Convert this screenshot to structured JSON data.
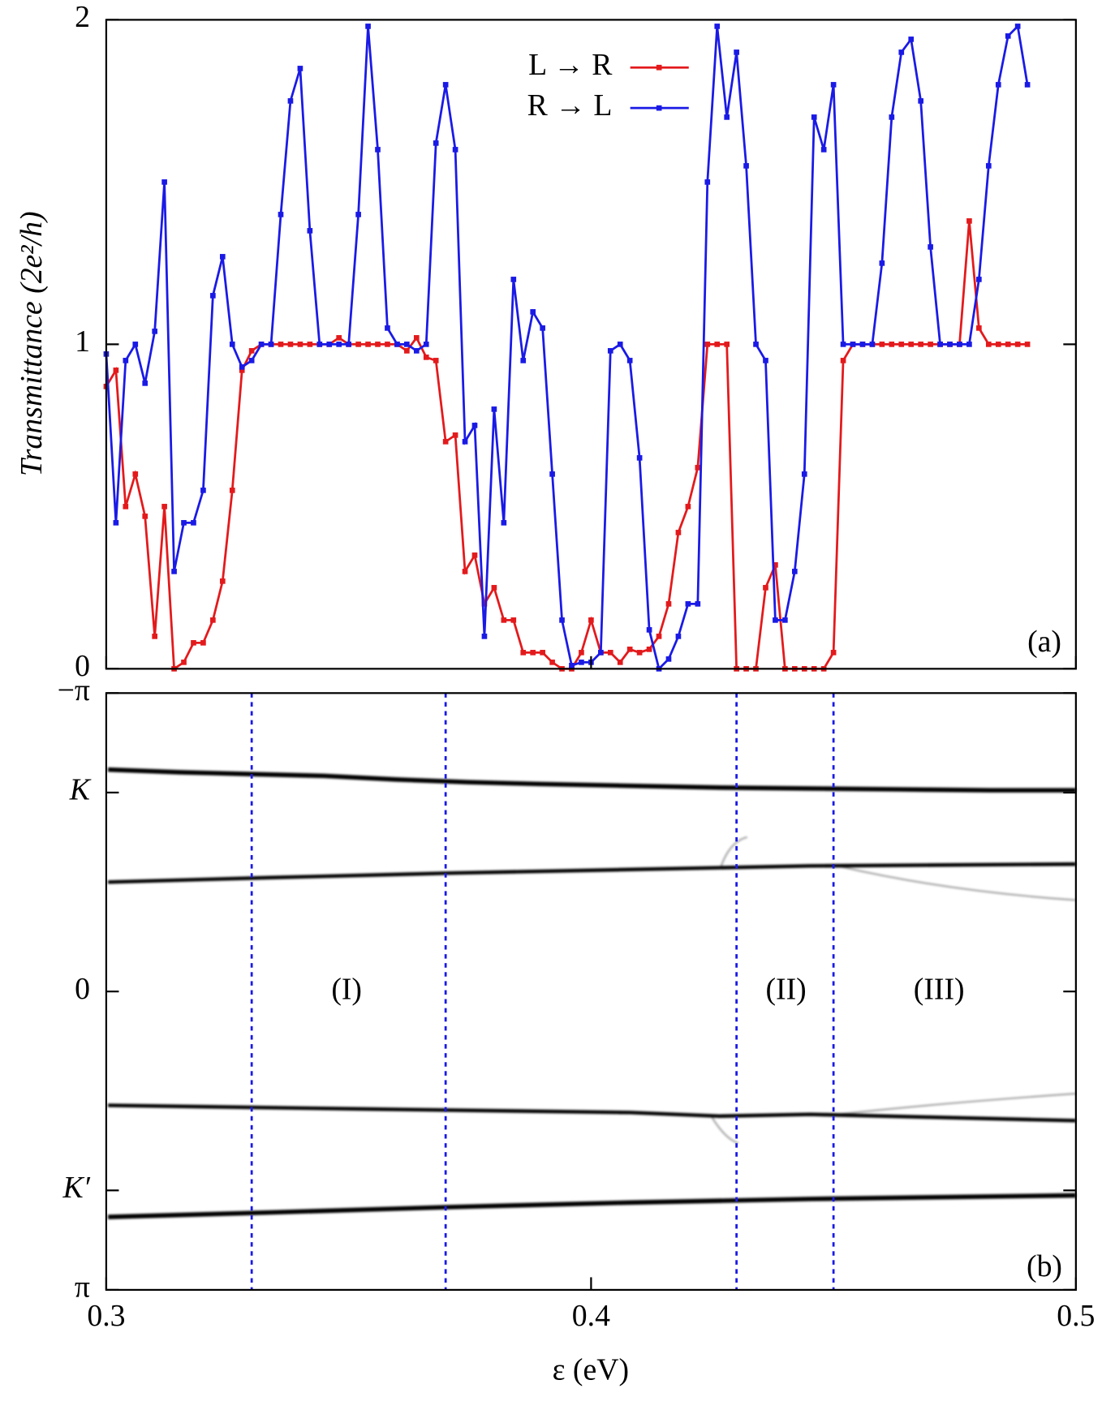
{
  "chart_data": [
    {
      "type": "line",
      "ylabel": "Transmittance (2e²/h)",
      "panel_label": "(a)",
      "xlim": [
        0.3,
        0.5
      ],
      "ylim": [
        0,
        2
      ],
      "yticks": [
        0,
        1,
        2
      ],
      "legend": "top",
      "x": [
        0.3,
        0.302,
        0.304,
        0.306,
        0.308,
        0.31,
        0.312,
        0.314,
        0.316,
        0.318,
        0.32,
        0.322,
        0.324,
        0.326,
        0.328,
        0.33,
        0.332,
        0.334,
        0.336,
        0.338,
        0.34,
        0.342,
        0.344,
        0.346,
        0.348,
        0.35,
        0.352,
        0.354,
        0.356,
        0.358,
        0.36,
        0.362,
        0.364,
        0.366,
        0.368,
        0.37,
        0.372,
        0.374,
        0.376,
        0.378,
        0.38,
        0.382,
        0.384,
        0.386,
        0.388,
        0.39,
        0.392,
        0.394,
        0.396,
        0.398,
        0.4,
        0.402,
        0.404,
        0.406,
        0.408,
        0.41,
        0.412,
        0.414,
        0.416,
        0.418,
        0.42,
        0.422,
        0.424,
        0.426,
        0.428,
        0.43,
        0.432,
        0.434,
        0.436,
        0.438,
        0.44,
        0.442,
        0.444,
        0.446,
        0.448,
        0.45,
        0.452,
        0.454,
        0.456,
        0.458,
        0.46,
        0.462,
        0.464,
        0.466,
        0.468,
        0.47,
        0.472,
        0.474,
        0.476,
        0.478,
        0.48,
        0.482,
        0.484,
        0.486,
        0.488,
        0.49
      ],
      "series": [
        {
          "name": "L → R",
          "color": "#e31a1c",
          "values": [
            0.87,
            0.92,
            0.5,
            0.6,
            0.47,
            0.1,
            0.5,
            0.0,
            0.02,
            0.08,
            0.08,
            0.15,
            0.27,
            0.55,
            0.92,
            0.98,
            1.0,
            1.0,
            1.0,
            1.0,
            1.0,
            1.0,
            1.0,
            1.0,
            1.02,
            1.0,
            1.0,
            1.0,
            1.0,
            1.0,
            1.0,
            0.98,
            1.02,
            0.96,
            0.95,
            0.7,
            0.72,
            0.3,
            0.35,
            0.2,
            0.25,
            0.15,
            0.15,
            0.05,
            0.05,
            0.05,
            0.02,
            0.0,
            0.0,
            0.05,
            0.15,
            0.05,
            0.05,
            0.02,
            0.06,
            0.05,
            0.06,
            0.1,
            0.2,
            0.42,
            0.5,
            0.62,
            1.0,
            1.0,
            1.0,
            0.0,
            0.0,
            0.0,
            0.25,
            0.32,
            0.0,
            0.0,
            0.0,
            0.0,
            0.0,
            0.05,
            0.95,
            1.0,
            1.0,
            1.0,
            1.0,
            1.0,
            1.0,
            1.0,
            1.0,
            1.0,
            1.0,
            1.0,
            1.0,
            1.38,
            1.05,
            1.0,
            1.0,
            1.0,
            1.0,
            1.0
          ]
        },
        {
          "name": "R → L",
          "color": "#1a1ae6",
          "values": [
            0.97,
            0.45,
            0.95,
            1.0,
            0.88,
            1.04,
            1.5,
            0.3,
            0.45,
            0.45,
            0.55,
            1.15,
            1.27,
            1.0,
            0.93,
            0.95,
            1.0,
            1.0,
            1.4,
            1.75,
            1.85,
            1.35,
            1.0,
            1.0,
            1.0,
            1.0,
            1.4,
            1.98,
            1.6,
            1.05,
            1.0,
            1.0,
            0.98,
            1.0,
            1.62,
            1.8,
            1.6,
            0.7,
            0.75,
            0.1,
            0.8,
            0.45,
            1.2,
            0.95,
            1.1,
            1.05,
            0.6,
            0.15,
            0.01,
            0.02,
            0.02,
            0.05,
            0.98,
            1.0,
            0.95,
            0.65,
            0.12,
            0.0,
            0.03,
            0.1,
            0.2,
            0.2,
            1.5,
            1.98,
            1.7,
            1.9,
            1.55,
            1.0,
            0.95,
            0.15,
            0.15,
            0.3,
            0.6,
            1.7,
            1.6,
            1.8,
            1.0,
            1.0,
            1.0,
            1.0,
            1.25,
            1.7,
            1.9,
            1.94,
            1.75,
            1.3,
            1.0,
            1.0,
            1.0,
            1.0,
            1.2,
            1.55,
            1.8,
            1.95,
            1.98,
            1.8
          ]
        }
      ]
    },
    {
      "type": "heatmap",
      "panel_label": "(b)",
      "xlabel": "ε (eV)",
      "xlim": [
        0.3,
        0.5
      ],
      "xticks": [
        0.3,
        0.4,
        0.5
      ],
      "ylim": [
        -3.1416,
        3.1416
      ],
      "y_inverted": true,
      "yticks": [
        {
          "value": -3.1416,
          "label": "−π"
        },
        {
          "value": -2.0944,
          "label": "K"
        },
        0,
        {
          "value": 2.0944,
          "label": "K′"
        },
        {
          "value": 3.1416,
          "label": "π"
        }
      ],
      "dividers": [
        0.33,
        0.37,
        0.43,
        0.45
      ],
      "divider_color": "#1a1ae6",
      "annotations": [
        "(I)",
        "(II)",
        "(III)"
      ]
    }
  ]
}
